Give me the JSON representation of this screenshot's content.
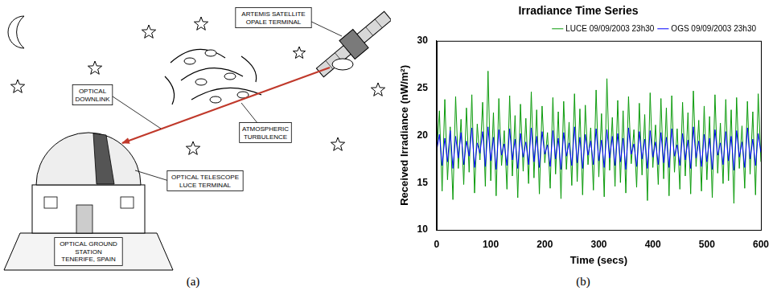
{
  "panel_captions": [
    "(a)",
    "(b)"
  ],
  "diagram": {
    "satellite": [
      "ARTEMIS SATELLITE",
      "OPALE TERMINAL"
    ],
    "turbulence": [
      "ATMOSPHERIC",
      "TURBULENCE"
    ],
    "downlink": [
      "OPTICAL",
      "DOWNLINK"
    ],
    "telescope": [
      "OPTICAL TELESCOPE",
      "LUCE TERMINAL"
    ],
    "station": [
      "OPTICAL GROUND",
      "STATION",
      "TENERIFE, SPAIN"
    ]
  },
  "chart_data": {
    "type": "line",
    "title": "Irradiance Time Series",
    "x_label": "Time (secs)",
    "y_label": "Received Irradiance (nW/m²)",
    "x": [
      0,
      5,
      10,
      15,
      20,
      25,
      30,
      35,
      40,
      45,
      50,
      55,
      60,
      65,
      70,
      75,
      80,
      85,
      90,
      95,
      100,
      105,
      110,
      115,
      120,
      125,
      130,
      135,
      140,
      145,
      150,
      155,
      160,
      165,
      170,
      175,
      180,
      185,
      190,
      195,
      200,
      205,
      210,
      215,
      220,
      225,
      230,
      235,
      240,
      245,
      250,
      255,
      260,
      265,
      270,
      275,
      280,
      285,
      290,
      295,
      300,
      305,
      310,
      315,
      320,
      325,
      330,
      335,
      340,
      345,
      350,
      355,
      360,
      365,
      370,
      375,
      380,
      385,
      390,
      395,
      400,
      405,
      410,
      415,
      420,
      425,
      430,
      435,
      440,
      445,
      450,
      455,
      460,
      465,
      470,
      475,
      480,
      485,
      490,
      495,
      500,
      505,
      510,
      515,
      520,
      525,
      530,
      535,
      540,
      545,
      550,
      555,
      560,
      565,
      570,
      575,
      580,
      585,
      590,
      595,
      600
    ],
    "series": [
      {
        "name": "LUCE 09/09/2003 23h30",
        "color": "#0a9a0a",
        "values": [
          18.2,
          22.6,
          14.1,
          23.8,
          15.3,
          20.9,
          13.2,
          24.1,
          16.5,
          21.7,
          14.8,
          22.9,
          16.1,
          24.3,
          13.9,
          21.2,
          17.4,
          23.5,
          14.6,
          26.8,
          15.2,
          22.4,
          13.6,
          23.9,
          16.8,
          20.5,
          14.3,
          24.2,
          15.7,
          22.1,
          13.4,
          23.3,
          16.2,
          21.8,
          14.9,
          24.6,
          15.5,
          22.7,
          13.8,
          23.1,
          17.1,
          20.3,
          14.4,
          24.0,
          15.9,
          22.5,
          13.3,
          23.6,
          16.4,
          21.4,
          14.7,
          24.4,
          15.1,
          22.8,
          13.7,
          23.2,
          16.9,
          20.8,
          14.2,
          24.8,
          15.6,
          22.3,
          13.5,
          26.0,
          16.3,
          21.9,
          14.6,
          23.7,
          15.0,
          22.6,
          13.9,
          24.1,
          17.0,
          20.6,
          14.5,
          23.4,
          15.8,
          22.2,
          13.1,
          24.5,
          16.6,
          21.1,
          14.8,
          23.9,
          15.4,
          22.9,
          13.6,
          24.2,
          16.1,
          20.7,
          14.3,
          23.5,
          15.7,
          22.4,
          13.8,
          24.7,
          16.7,
          21.6,
          14.1,
          23.1,
          15.3,
          22.0,
          13.4,
          24.3,
          16.0,
          21.3,
          14.9,
          23.8,
          15.2,
          22.7,
          12.8,
          24.0,
          16.5,
          21.0,
          14.4,
          23.6,
          15.9,
          22.5,
          13.7,
          24.4,
          17.2
        ]
      },
      {
        "name": "OGS 09/09/2003 23h30",
        "color": "#0000ff",
        "values": [
          18.4,
          20.1,
          16.8,
          19.7,
          17.2,
          20.5,
          16.5,
          19.9,
          17.6,
          20.3,
          16.9,
          19.4,
          17.8,
          20.8,
          16.6,
          19.2,
          18.1,
          20.4,
          16.7,
          20.9,
          17.3,
          19.8,
          16.4,
          20.6,
          17.9,
          19.1,
          16.8,
          20.7,
          17.4,
          19.6,
          16.5,
          20.2,
          17.7,
          19.3,
          16.9,
          20.8,
          17.2,
          19.9,
          16.6,
          20.4,
          18.0,
          19.0,
          16.7,
          20.5,
          17.5,
          19.7,
          16.4,
          20.3,
          17.8,
          19.2,
          16.8,
          20.9,
          17.1,
          19.8,
          16.5,
          20.1,
          17.9,
          19.4,
          16.9,
          20.7,
          17.3,
          19.5,
          16.6,
          20.6,
          17.6,
          19.9,
          16.8,
          20.2,
          17.2,
          19.7,
          16.4,
          20.8,
          18.0,
          19.1,
          16.7,
          20.4,
          17.5,
          19.6,
          16.5,
          20.5,
          17.7,
          19.3,
          16.9,
          20.3,
          17.1,
          19.8,
          16.6,
          20.7,
          17.8,
          19.0,
          16.8,
          20.2,
          17.4,
          19.5,
          16.5,
          20.9,
          17.6,
          19.4,
          16.7,
          20.1,
          17.2,
          19.7,
          16.4,
          20.6,
          17.9,
          19.2,
          16.9,
          20.4,
          17.3,
          19.9,
          16.3,
          20.5,
          17.7,
          19.3,
          16.6,
          20.8,
          17.5,
          19.6,
          16.8,
          20.2,
          18.2
        ]
      }
    ],
    "xlim": [
      0,
      600
    ],
    "xticks": [
      0,
      100,
      200,
      300,
      400,
      500,
      600
    ],
    "ylim": [
      10,
      30
    ],
    "yticks": [
      10,
      15,
      20,
      25,
      30
    ],
    "grid": false,
    "legend": "top",
    "marker": "none",
    "line_style": "solid"
  }
}
